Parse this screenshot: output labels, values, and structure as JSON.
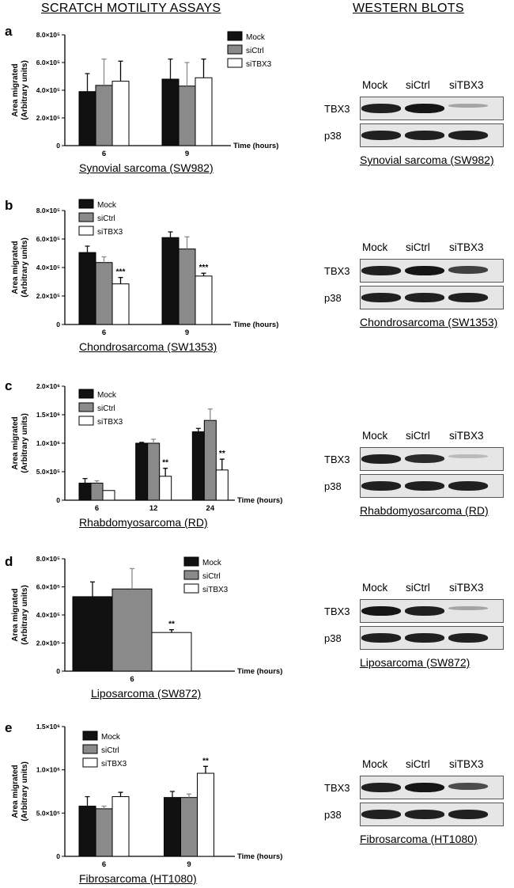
{
  "headers": {
    "left": "SCRATCH MOTILITY ASSAYS",
    "right": "WESTERN BLOTS"
  },
  "legend": [
    "Mock",
    "siCtrl",
    "siTBX3"
  ],
  "ylabel_line1": "Area migrated",
  "ylabel_line2": "(Arbitrary units)",
  "xlabel": "Time (hours)",
  "blot": {
    "lanes": [
      "Mock",
      "siCtrl",
      "siTBX3"
    ],
    "rows": [
      "TBX3",
      "p38"
    ]
  },
  "colors": {
    "Mock": "#111111",
    "siCtrl": "#8a8a8a",
    "siTBX3": "#ffffff"
  },
  "chart_data": [
    {
      "panel": "a",
      "type": "bar",
      "title": "Synovial sarcoma (SW982)",
      "categories": [
        "6",
        "9"
      ],
      "ylim": [
        0,
        800000
      ],
      "yticks": [
        "0",
        "2.0×10⁵",
        "4.0×10⁵",
        "6.0×10⁵",
        "8.0×10⁵"
      ],
      "series": [
        {
          "name": "Mock",
          "values": [
            390000,
            480000
          ],
          "errors": [
            130000,
            145000
          ]
        },
        {
          "name": "siCtrl",
          "values": [
            435000,
            430000
          ],
          "errors": [
            190000,
            170000
          ]
        },
        {
          "name": "siTBX3",
          "values": [
            465000,
            490000
          ],
          "errors": [
            145000,
            135000
          ]
        }
      ],
      "annotations": [
        "",
        ""
      ],
      "legend_position": "top-right",
      "blot_tbx3_intensity": [
        0.9,
        0.95,
        0.3
      ]
    },
    {
      "panel": "b",
      "type": "bar",
      "title": "Chondrosarcoma (SW1353)",
      "categories": [
        "6",
        "9"
      ],
      "ylim": [
        0,
        800000
      ],
      "yticks": [
        "0",
        "2.0×10⁵",
        "4.0×10⁵",
        "6.0×10⁵",
        "8.0×10⁵"
      ],
      "series": [
        {
          "name": "Mock",
          "values": [
            505000,
            610000
          ],
          "errors": [
            45000,
            40000
          ]
        },
        {
          "name": "siCtrl",
          "values": [
            435000,
            530000
          ],
          "errors": [
            40000,
            85000
          ]
        },
        {
          "name": "siTBX3",
          "values": [
            285000,
            340000
          ],
          "errors": [
            45000,
            20000
          ]
        }
      ],
      "annotations": [
        "***",
        "***"
      ],
      "legend_position": "top-left",
      "blot_tbx3_intensity": [
        0.9,
        0.95,
        0.75
      ]
    },
    {
      "panel": "c",
      "type": "bar",
      "title": "Rhabdomyosarcoma (RD)",
      "categories": [
        "6",
        "12",
        "24"
      ],
      "ylim": [
        0,
        2000000
      ],
      "yticks": [
        "0",
        "5.0×10⁵",
        "1.0×10⁶",
        "1.5×10⁶",
        "2.0×10⁶"
      ],
      "series": [
        {
          "name": "Mock",
          "values": [
            300000,
            1000000,
            1200000
          ],
          "errors": [
            80000,
            15000,
            60000
          ]
        },
        {
          "name": "siCtrl",
          "values": [
            300000,
            1000000,
            1400000
          ],
          "errors": [
            40000,
            70000,
            200000
          ]
        },
        {
          "name": "siTBX3",
          "values": [
            170000,
            420000,
            530000
          ],
          "errors": [
            0,
            140000,
            190000
          ]
        }
      ],
      "annotations": [
        "",
        "**",
        "**"
      ],
      "legend_position": "top-left",
      "blot_tbx3_intensity": [
        0.9,
        0.85,
        0.2
      ]
    },
    {
      "panel": "d",
      "type": "bar",
      "title": "Liposarcoma (SW872)",
      "categories": [
        "6"
      ],
      "ylim": [
        0,
        800000
      ],
      "yticks": [
        "0",
        "2.0×10⁵",
        "4.0×10⁵",
        "6.0×10⁵",
        "8.0×10⁵"
      ],
      "series": [
        {
          "name": "Mock",
          "values": [
            530000
          ],
          "errors": [
            105000
          ]
        },
        {
          "name": "siCtrl",
          "values": [
            585000
          ],
          "errors": [
            145000
          ]
        },
        {
          "name": "siTBX3",
          "values": [
            275000
          ],
          "errors": [
            20000
          ]
        }
      ],
      "annotations": [
        "**"
      ],
      "legend_position": "top-right",
      "blot_tbx3_intensity": [
        0.95,
        0.9,
        0.3
      ]
    },
    {
      "panel": "e",
      "type": "bar",
      "title": "Fibrosarcoma (HT1080)",
      "categories": [
        "6",
        "9"
      ],
      "ylim": [
        0,
        1500000
      ],
      "yticks": [
        "0",
        "5.0×10⁵",
        "1.0×10⁶",
        "1.5×10⁶"
      ],
      "series": [
        {
          "name": "Mock",
          "values": [
            580000,
            680000
          ],
          "errors": [
            110000,
            70000
          ]
        },
        {
          "name": "siCtrl",
          "values": [
            550000,
            680000
          ],
          "errors": [
            30000,
            40000
          ]
        },
        {
          "name": "siTBX3",
          "values": [
            690000,
            960000
          ],
          "errors": [
            50000,
            80000
          ]
        }
      ],
      "annotations": [
        "",
        "**"
      ],
      "legend_position": "top-left",
      "blot_tbx3_intensity": [
        0.9,
        0.95,
        0.7
      ]
    }
  ]
}
